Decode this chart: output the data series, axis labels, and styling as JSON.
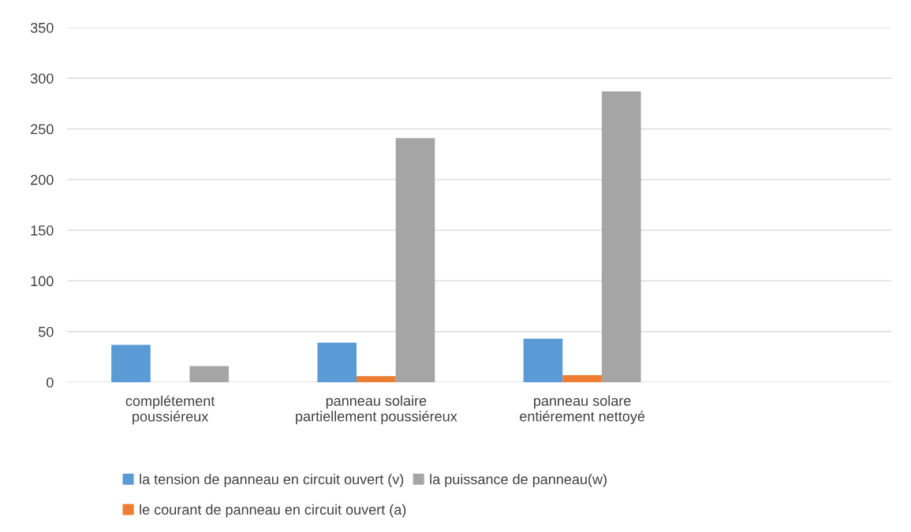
{
  "chart_data": {
    "type": "bar",
    "categories": [
      "complétement\npoussiéreux",
      "panneau solaire\npartiellement poussiéreux",
      "panneau solare\nentiérement nettoyé",
      null
    ],
    "series": [
      {
        "name": "la tension de panneau en circuit ouvert (v)",
        "color": "#5b9bd5",
        "values": [
          37,
          39,
          43,
          null
        ]
      },
      {
        "name": "le courant de panneau en circuit ouvert (a)",
        "color": "#ed7d31",
        "values": [
          0,
          6,
          7,
          null
        ]
      },
      {
        "name": "la puissance de panneau(w)",
        "color": "#a5a5a5",
        "values": [
          16,
          241,
          287,
          null
        ]
      }
    ],
    "ylim": [
      0,
      350
    ],
    "yticks": [
      0,
      50,
      100,
      150,
      200,
      250,
      300,
      350
    ],
    "grid": "y",
    "legend": "bottom"
  }
}
